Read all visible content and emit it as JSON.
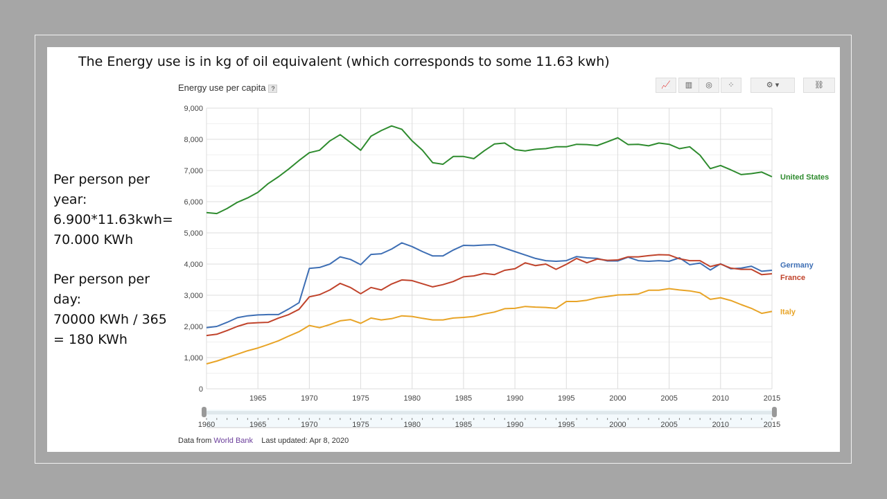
{
  "headline": "The Energy use is in kg of oil equivalent (which corresponds to some 11.63 kwh)",
  "side_notes": [
    [
      "Per person per",
      "year:",
      "6.900*11.63kwh=",
      "70.000 KWh"
    ],
    [
      "Per person per",
      "day:",
      "70000 KWh / 365",
      "= 180 KWh"
    ]
  ],
  "chart_header": {
    "title": "Energy use per capita",
    "help": "?"
  },
  "toolbar": [
    {
      "icon": "line-chart-icon"
    },
    {
      "icon": "bar-chart-icon"
    },
    {
      "icon": "map-icon"
    },
    {
      "icon": "scatter-icon"
    },
    {
      "icon": "settings-icon",
      "dropdown": "▾"
    },
    {
      "icon": "link-icon"
    }
  ],
  "footer": {
    "source_prefix": "Data from",
    "source_link": "World Bank",
    "updated": "Last updated: Apr 8, 2020"
  },
  "range_slider": {
    "start": "1960",
    "end": "2015",
    "labels": [
      "1960",
      "1965",
      "1970",
      "1975",
      "1980",
      "1985",
      "1990",
      "1995",
      "2000",
      "2005",
      "2010",
      "2015"
    ]
  },
  "chart_data": {
    "type": "line",
    "title": "Energy use per capita",
    "xlabel": "",
    "ylabel": "",
    "xlim": [
      1960,
      2015
    ],
    "ylim": [
      0,
      9000
    ],
    "yticks": [
      "0",
      "1,000",
      "2,000",
      "3,000",
      "4,000",
      "5,000",
      "6,000",
      "7,000",
      "8,000",
      "9,000"
    ],
    "xticks": [
      "1965",
      "1970",
      "1975",
      "1980",
      "1985",
      "1990",
      "1995",
      "2000",
      "2005",
      "2010",
      "2015"
    ],
    "grid": true,
    "legend": "inline-right",
    "x_start": 1960,
    "series": [
      {
        "name": "United States",
        "color": "#2e8b2e",
        "values": [
          5650,
          5620,
          5780,
          5980,
          6120,
          6300,
          6580,
          6800,
          7050,
          7320,
          7570,
          7650,
          7950,
          8150,
          7900,
          7650,
          8100,
          8280,
          8430,
          8320,
          7950,
          7650,
          7250,
          7200,
          7450,
          7450,
          7380,
          7630,
          7850,
          7880,
          7670,
          7630,
          7680,
          7700,
          7760,
          7760,
          7840,
          7830,
          7800,
          7920,
          8050,
          7830,
          7840,
          7790,
          7880,
          7840,
          7700,
          7760,
          7490,
          7060,
          7160,
          7020,
          6870,
          6900,
          6950,
          6800
        ]
      },
      {
        "name": "Germany",
        "color": "#3d6eb4",
        "values": [
          1960,
          2000,
          2130,
          2280,
          2340,
          2370,
          2380,
          2380,
          2560,
          2760,
          3860,
          3890,
          4000,
          4230,
          4150,
          3980,
          4310,
          4330,
          4480,
          4680,
          4560,
          4400,
          4260,
          4260,
          4450,
          4600,
          4590,
          4610,
          4620,
          4510,
          4400,
          4290,
          4180,
          4110,
          4090,
          4110,
          4240,
          4200,
          4180,
          4100,
          4100,
          4220,
          4110,
          4090,
          4110,
          4090,
          4200,
          3980,
          4030,
          3810,
          4010,
          3850,
          3870,
          3930,
          3770,
          3800
        ]
      },
      {
        "name": "France",
        "color": "#c0432b",
        "values": [
          1710,
          1750,
          1870,
          2000,
          2100,
          2120,
          2130,
          2270,
          2380,
          2550,
          2950,
          3020,
          3170,
          3380,
          3250,
          3050,
          3250,
          3170,
          3360,
          3490,
          3470,
          3370,
          3270,
          3340,
          3440,
          3590,
          3620,
          3700,
          3660,
          3800,
          3850,
          4040,
          3950,
          4000,
          3830,
          3990,
          4180,
          4040,
          4160,
          4120,
          4130,
          4230,
          4230,
          4270,
          4300,
          4290,
          4170,
          4110,
          4110,
          3920,
          4000,
          3870,
          3830,
          3830,
          3660,
          3690
        ]
      },
      {
        "name": "Italy",
        "color": "#e8a427",
        "values": [
          800,
          890,
          1000,
          1110,
          1220,
          1310,
          1420,
          1540,
          1690,
          1830,
          2030,
          1960,
          2060,
          2180,
          2220,
          2100,
          2270,
          2210,
          2250,
          2340,
          2320,
          2260,
          2210,
          2210,
          2270,
          2290,
          2320,
          2400,
          2460,
          2570,
          2580,
          2640,
          2620,
          2610,
          2580,
          2800,
          2800,
          2840,
          2920,
          2960,
          3010,
          3020,
          3040,
          3160,
          3160,
          3210,
          3170,
          3140,
          3080,
          2870,
          2920,
          2830,
          2700,
          2580,
          2420,
          2480
        ]
      }
    ]
  }
}
